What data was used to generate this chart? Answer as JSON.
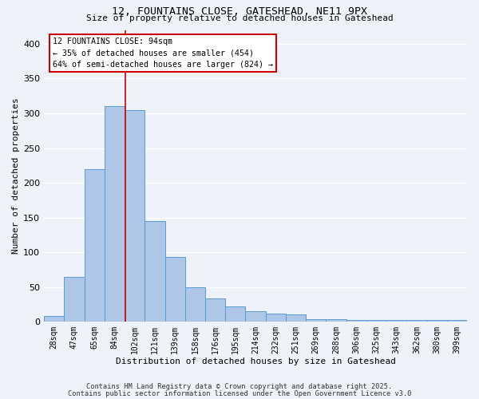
{
  "title1": "12, FOUNTAINS CLOSE, GATESHEAD, NE11 9PX",
  "title2": "Size of property relative to detached houses in Gateshead",
  "xlabel": "Distribution of detached houses by size in Gateshead",
  "ylabel": "Number of detached properties",
  "categories": [
    "28sqm",
    "47sqm",
    "65sqm",
    "84sqm",
    "102sqm",
    "121sqm",
    "139sqm",
    "158sqm",
    "176sqm",
    "195sqm",
    "214sqm",
    "232sqm",
    "251sqm",
    "269sqm",
    "288sqm",
    "306sqm",
    "325sqm",
    "343sqm",
    "362sqm",
    "380sqm",
    "399sqm"
  ],
  "values": [
    8,
    65,
    220,
    310,
    305,
    145,
    93,
    50,
    33,
    22,
    15,
    12,
    11,
    4,
    4,
    3,
    2,
    3,
    3,
    3,
    3
  ],
  "bar_color": "#aec6e8",
  "bar_edge_color": "#5b9bd5",
  "background_color": "#eef2fb",
  "grid_color": "#ffffff",
  "vline_color": "#cc0000",
  "annotation_text": "12 FOUNTAINS CLOSE: 94sqm\n← 35% of detached houses are smaller (454)\n64% of semi-detached houses are larger (824) →",
  "ylim": [
    0,
    420
  ],
  "yticks": [
    0,
    50,
    100,
    150,
    200,
    250,
    300,
    350,
    400
  ],
  "footnote1": "Contains HM Land Registry data © Crown copyright and database right 2025.",
  "footnote2": "Contains public sector information licensed under the Open Government Licence v3.0"
}
